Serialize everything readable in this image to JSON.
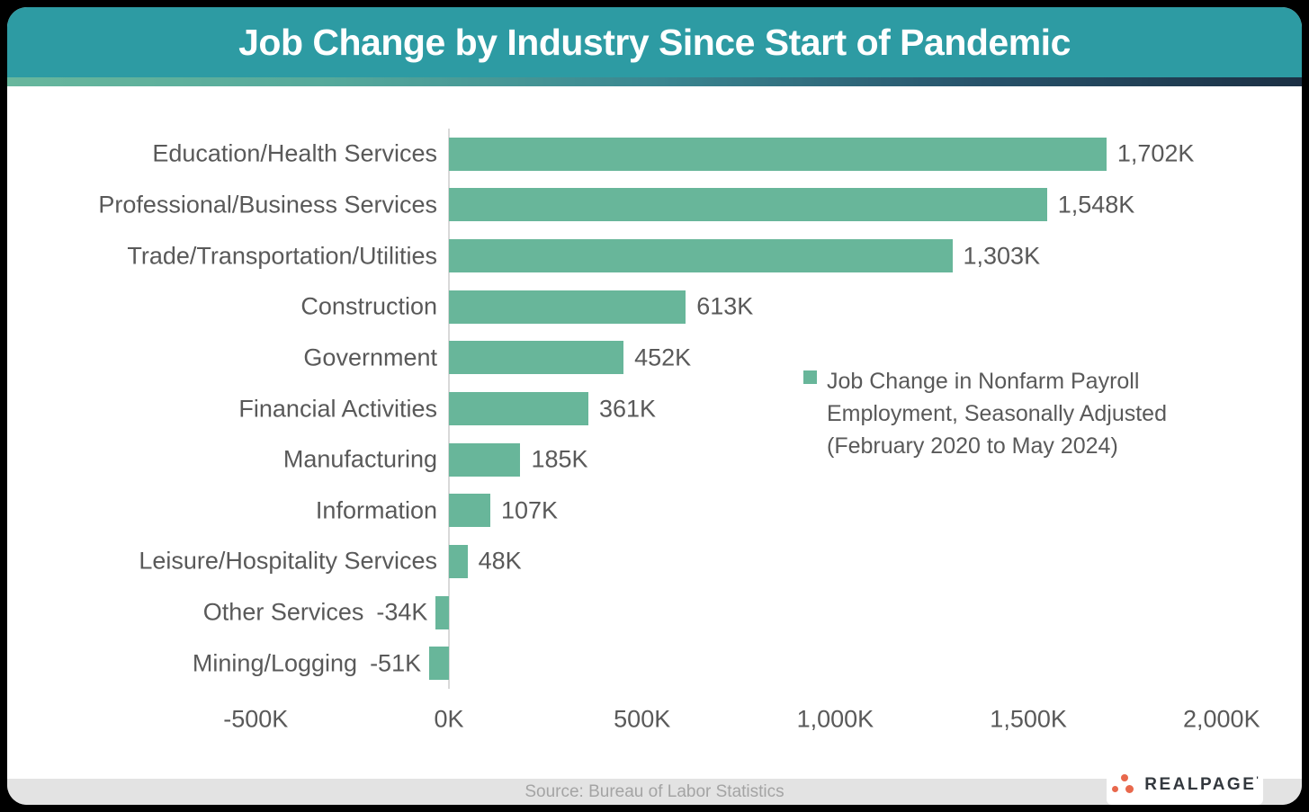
{
  "header": {
    "title": "Job Change by Industry Since Start of Pandemic",
    "background": "#2D9BA3"
  },
  "accent_strip": {
    "gradient": [
      "#68B79D",
      "#55A99B",
      "#3A8791",
      "#27536B",
      "#1C3044"
    ]
  },
  "chart_data": {
    "type": "bar",
    "orientation": "horizontal",
    "title": "Job Change by Industry Since Start of Pandemic",
    "categories": [
      "Education/Health Services",
      "Professional/Business Services",
      "Trade/Transportation/Utilities",
      "Construction",
      "Government",
      "Financial Activities",
      "Manufacturing",
      "Information",
      "Leisure/Hospitality Services",
      "Other Services",
      "Mining/Logging"
    ],
    "values": [
      1702,
      1548,
      1303,
      613,
      452,
      361,
      185,
      107,
      48,
      -34,
      -51
    ],
    "value_labels": [
      "1,702K",
      "1,548K",
      "1,303K",
      "613K",
      "452K",
      "361K",
      "185K",
      "107K",
      "48K",
      "-34K",
      "-51K"
    ],
    "unit": "K",
    "xlim": [
      -500,
      2000
    ],
    "x_ticks": [
      {
        "value": -500,
        "label": "-500K"
      },
      {
        "value": 0,
        "label": "0K"
      },
      {
        "value": 500,
        "label": "500K"
      },
      {
        "value": 1000,
        "label": "1,000K"
      },
      {
        "value": 1500,
        "label": "1,500K"
      },
      {
        "value": 2000,
        "label": "2,000K"
      }
    ],
    "grid": false,
    "legend_position": "middle-right",
    "bar_color": "#68B69A",
    "label_color": "#595959",
    "axis_line_color": "#D9D9D9"
  },
  "legend": {
    "marker_color": "#68B69A",
    "label": "Job Change in Nonfarm Payroll Employment, Seasonally Adjusted (February 2020 to May 2024)",
    "lines": [
      "Job Change in Nonfarm Payroll",
      "Employment, Seasonally Adjusted",
      "(February 2020 to May 2024)"
    ]
  },
  "footer": {
    "source": "Source: Bureau of Labor Statistics"
  },
  "logo": {
    "text": "REALPAGE",
    "dot_color": "#E8684C",
    "text_color": "#33383E"
  }
}
